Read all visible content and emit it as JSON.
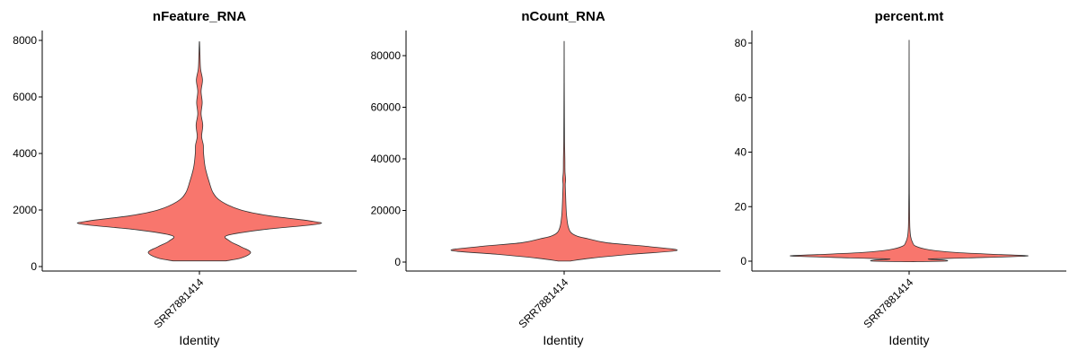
{
  "chart_data": [
    {
      "type": "violin",
      "title": "nFeature_RNA",
      "xlabel": "Identity",
      "ylabel": "",
      "categories": [
        "SRR7881414"
      ],
      "ylim": [
        0,
        8000
      ],
      "yticks": [
        0,
        2000,
        4000,
        6000,
        8000
      ],
      "yticklabels": [
        "0",
        "2000",
        "4000",
        "6000",
        "8000"
      ],
      "fill": "#F8766D",
      "density": [
        {
          "y": 200,
          "w": 0.19
        },
        {
          "y": 300,
          "w": 0.3
        },
        {
          "y": 500,
          "w": 0.37
        },
        {
          "y": 700,
          "w": 0.3
        },
        {
          "y": 900,
          "w": 0.22
        },
        {
          "y": 1100,
          "w": 0.2
        },
        {
          "y": 1300,
          "w": 0.45
        },
        {
          "y": 1500,
          "w": 0.85
        },
        {
          "y": 1600,
          "w": 0.82
        },
        {
          "y": 1800,
          "w": 0.5
        },
        {
          "y": 2000,
          "w": 0.3
        },
        {
          "y": 2300,
          "w": 0.16
        },
        {
          "y": 2600,
          "w": 0.1
        },
        {
          "y": 3000,
          "w": 0.07
        },
        {
          "y": 3500,
          "w": 0.042
        },
        {
          "y": 4000,
          "w": 0.03
        },
        {
          "y": 4300,
          "w": 0.028
        },
        {
          "y": 4600,
          "w": 0.016
        },
        {
          "y": 5000,
          "w": 0.024
        },
        {
          "y": 5400,
          "w": 0.012
        },
        {
          "y": 5800,
          "w": 0.02
        },
        {
          "y": 6200,
          "w": 0.012
        },
        {
          "y": 6600,
          "w": 0.022
        },
        {
          "y": 7000,
          "w": 0.008
        },
        {
          "y": 7500,
          "w": 0.004
        },
        {
          "y": 7950,
          "w": 0.001
        }
      ]
    },
    {
      "type": "violin",
      "title": "nCount_RNA",
      "xlabel": "Identity",
      "ylabel": "",
      "categories": [
        "SRR7881414"
      ],
      "ylim": [
        0,
        90000
      ],
      "yticks": [
        0,
        20000,
        40000,
        60000,
        80000
      ],
      "yticklabels": [
        "0",
        "20000",
        "40000",
        "60000",
        "80000"
      ],
      "fill": "#F8766D",
      "density": [
        {
          "y": 400,
          "w": 0.05
        },
        {
          "y": 1500,
          "w": 0.22
        },
        {
          "y": 3000,
          "w": 0.55
        },
        {
          "y": 4500,
          "w": 0.93
        },
        {
          "y": 6000,
          "w": 0.7
        },
        {
          "y": 7500,
          "w": 0.35
        },
        {
          "y": 9000,
          "w": 0.2
        },
        {
          "y": 10000,
          "w": 0.11
        },
        {
          "y": 11500,
          "w": 0.055
        },
        {
          "y": 14000,
          "w": 0.032
        },
        {
          "y": 18000,
          "w": 0.02
        },
        {
          "y": 22000,
          "w": 0.015
        },
        {
          "y": 26000,
          "w": 0.012
        },
        {
          "y": 30000,
          "w": 0.009
        },
        {
          "y": 32000,
          "w": 0.012
        },
        {
          "y": 35000,
          "w": 0.007
        },
        {
          "y": 40000,
          "w": 0.006
        },
        {
          "y": 45000,
          "w": 0.004
        },
        {
          "y": 50000,
          "w": 0.003
        },
        {
          "y": 60000,
          "w": 0.002
        },
        {
          "y": 70000,
          "w": 0.0012
        },
        {
          "y": 85500,
          "w": 0.0005
        }
      ]
    },
    {
      "type": "violin",
      "title": "percent.mt",
      "xlabel": "Identity",
      "ylabel": "",
      "categories": [
        "SRR7881414"
      ],
      "ylim": [
        -3.5,
        85
      ],
      "yticks": [
        0,
        20,
        40,
        60,
        80
      ],
      "yticklabels": [
        "0",
        "20",
        "40",
        "60",
        "80"
      ],
      "fill": "#F8766D",
      "density": [
        {
          "y": -0.2,
          "w": 0.01
        },
        {
          "y": 0,
          "w": 0.27
        },
        {
          "y": 0.4,
          "w": 0.27
        },
        {
          "y": 0.8,
          "w": 0.15
        },
        {
          "y": 1.2,
          "w": 0.45
        },
        {
          "y": 1.9,
          "w": 0.9
        },
        {
          "y": 2.4,
          "w": 0.7
        },
        {
          "y": 3.2,
          "w": 0.35
        },
        {
          "y": 4.2,
          "w": 0.15
        },
        {
          "y": 5.5,
          "w": 0.05
        },
        {
          "y": 7,
          "w": 0.025
        },
        {
          "y": 9,
          "w": 0.012
        },
        {
          "y": 12,
          "w": 0.006
        },
        {
          "y": 16,
          "w": 0.004
        },
        {
          "y": 25,
          "w": 0.002
        },
        {
          "y": 40,
          "w": 0.0012
        },
        {
          "y": 60,
          "w": 0.0008
        },
        {
          "y": 81,
          "w": 0.0003
        }
      ]
    }
  ]
}
